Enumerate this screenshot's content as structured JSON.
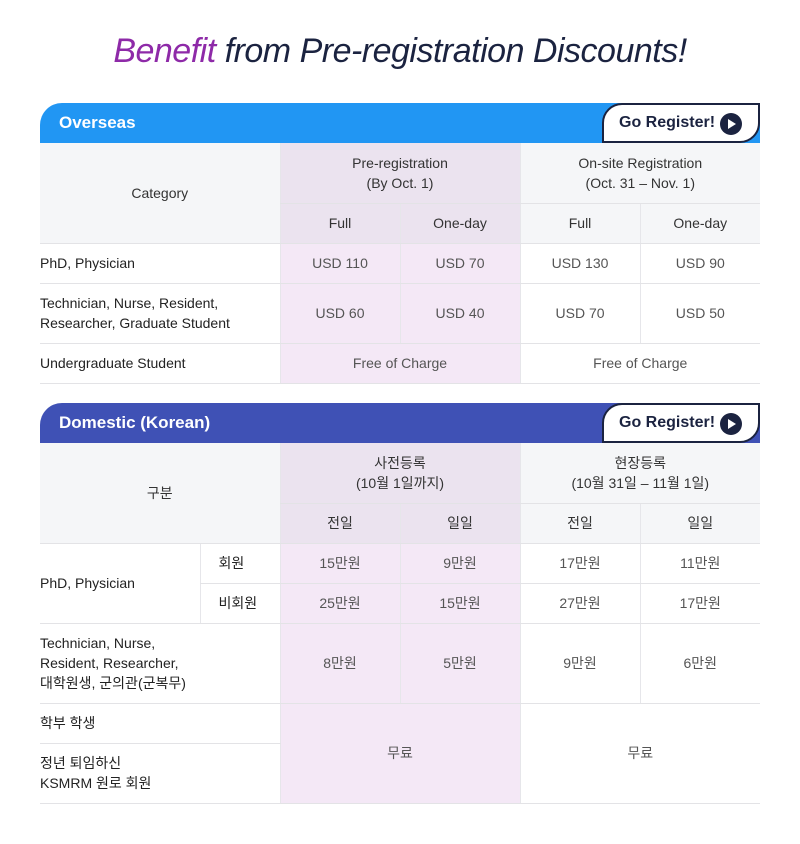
{
  "title": {
    "highlight": "Benefit",
    "rest": " from Pre-registration Discounts!"
  },
  "colors": {
    "overseas": "#2196f3",
    "domestic": "#3f51b5",
    "accent": "#8e2aa8",
    "navy": "#1b2340",
    "pre_header": "#ebe3ef",
    "pre_body": "#f4e8f6"
  },
  "overseas": {
    "heading": "Overseas",
    "go_label": "Go Register!",
    "go_icon": "play-circle-icon",
    "category": "Category",
    "pre": "Pre-registration",
    "pre_date": "(By Oct. 1)",
    "onsite": "On-site Registration",
    "onsite_date": "(Oct. 31 – Nov. 1)",
    "sub": [
      "Full",
      "One-day",
      "Full",
      "One-day"
    ],
    "rows": [
      {
        "label": "PhD, Physician",
        "values": [
          "USD 110",
          "USD 70",
          "USD 130",
          "USD 90"
        ]
      },
      {
        "label": "Technician, Nurse, Resident, Researcher, Graduate Student",
        "values": [
          "USD 60",
          "USD 40",
          "USD 70",
          "USD 50"
        ]
      }
    ],
    "undergrad": {
      "label": "Undergraduate Student",
      "pre": "Free of Charge",
      "onsite": "Free of Charge"
    }
  },
  "domestic": {
    "heading": "Domestic (Korean)",
    "go_label": "Go Register!",
    "go_icon": "play-circle-icon",
    "category": "구분",
    "pre": "사전등록",
    "pre_date": "(10월 1일까지)",
    "onsite": "현장등록",
    "onsite_date": "(10월 31일 – 11월 1일)",
    "sub": [
      "전일",
      "일일",
      "전일",
      "일일"
    ],
    "phd": "PhD, Physician",
    "member": {
      "label": "회원",
      "values": [
        "15만원",
        "9만원",
        "17만원",
        "11만원"
      ]
    },
    "nonmember": {
      "label": "비회원",
      "values": [
        "25만원",
        "15만원",
        "27만원",
        "17만원"
      ]
    },
    "tech": {
      "label1": "Technician, Nurse,",
      "label2": "Resident, Researcher,",
      "label3": "대학원생, 군의관(군복무)",
      "values": [
        "8만원",
        "5만원",
        "9만원",
        "6만원"
      ]
    },
    "undergrad": "학부 학생",
    "retired1": "정년 퇴임하신",
    "retired2": "KSMRM 원로 회원",
    "free_pre": "무료",
    "free_onsite": "무료"
  }
}
